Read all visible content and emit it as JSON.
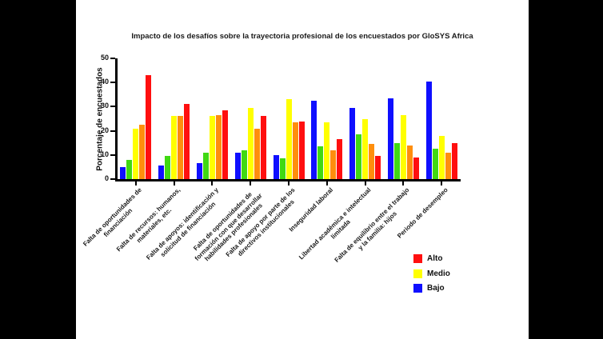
{
  "window": {
    "background_color": "#000000",
    "figure_background_color": "#ffffff"
  },
  "chart_data": {
    "type": "bar",
    "title": "Impacto de los desafíos sobre la trayectoria profesional de los encuestados por GloSYS Africa",
    "xlabel": "",
    "ylabel": "Porcentaje de encuestados",
    "ylim": [
      0,
      50
    ],
    "yticks": [
      0,
      10,
      20,
      30,
      40,
      50
    ],
    "grid": false,
    "categories": [
      "Falta de oportunidades de\nfinanciación",
      "Falta de recursos: humanos,\nmateriales, etc.",
      "Falta de apoyos: identificación y\nsolicitud de financiación",
      "Falta de oportunidades de\nformación con que desarrollar\nhabilidades profesionales",
      "Falta de apoyo por parte de los\ndirectivos institucionales",
      "Inseguridad laboral",
      "Libertad académica e intelectual\nlimitada",
      "Falta de equilibrio entre el trabajo\ny la familia: hijos",
      "Periodo de desempleo"
    ],
    "series": [
      {
        "legend_label": "Bajo",
        "color": "#0f0fff",
        "values": [
          5,
          5.5,
          6.5,
          11,
          10,
          32.5,
          29.5,
          33.5,
          40.5
        ]
      },
      {
        "legend_label": "",
        "color": "#40d912",
        "values": [
          8,
          9.5,
          11,
          12,
          8.5,
          13.5,
          18.5,
          15,
          12.5
        ]
      },
      {
        "legend_label": "Medio",
        "color": "#ffff00",
        "values": [
          21,
          26,
          26,
          29.5,
          33,
          23.5,
          25,
          26.5,
          18
        ]
      },
      {
        "legend_label": "",
        "color": "#ff8e0d",
        "values": [
          22.5,
          26,
          26.5,
          21,
          23.5,
          12,
          14.5,
          14,
          11
        ]
      },
      {
        "legend_label": "Alto",
        "color": "#ff0f0f",
        "values": [
          43,
          31,
          28.5,
          26,
          24,
          16.5,
          9.5,
          9,
          15
        ]
      }
    ],
    "legend": {
      "position": "bottom-right",
      "items": [
        {
          "label": "Alto",
          "color": "#ff0f0f"
        },
        {
          "label": "Medio",
          "color": "#ffff00"
        },
        {
          "label": "Bajo",
          "color": "#0f0fff"
        }
      ]
    }
  }
}
